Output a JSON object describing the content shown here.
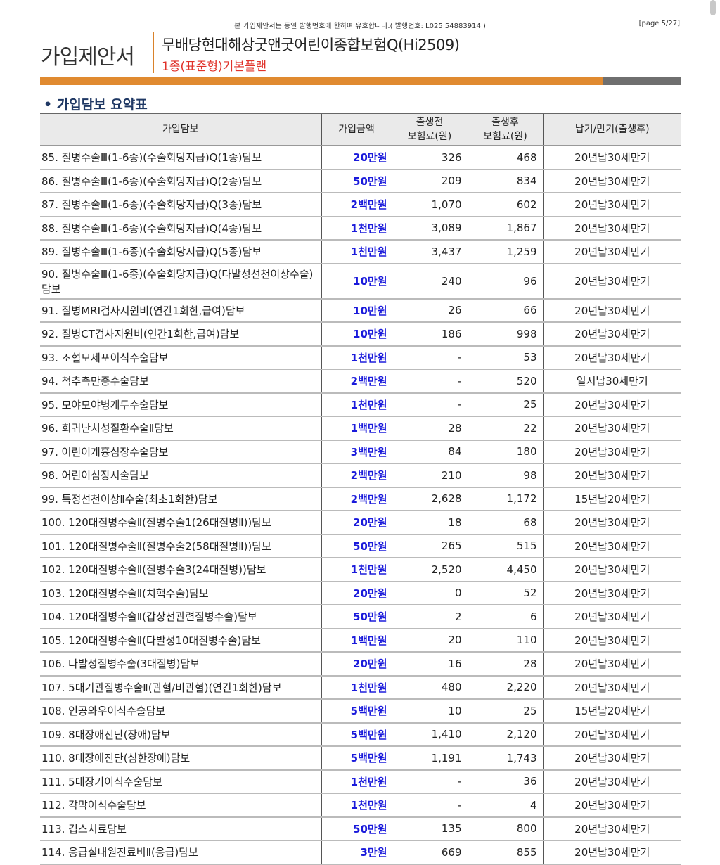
{
  "header": {
    "notice": "본 가입제안서는 동일 발행번호에 한하여 유효합니다.( 발행번호: L025 54883914 )",
    "page": "[page 5/27]",
    "doc_title": "가입제안서",
    "product": "무배당현대해상굿앤굿어린이종합보험Q(Hi2509)",
    "plan": "1종(표준형)기본플랜",
    "accent_color": "#e08a30",
    "plan_color": "#e0322a"
  },
  "section_title": "• 가입담보 요약표",
  "table": {
    "headers": [
      "가입담보",
      "가입금액",
      "출생전\n보험료(원)",
      "출생후\n보험료(원)",
      "납기/만기(출생후)"
    ],
    "amount_color": "#1a1adb",
    "rows": [
      [
        "85. 질병수술Ⅲ(1-6종)(수술회당지급)Q(1종)담보",
        "20만원",
        "326",
        "468",
        "20년납30세만기"
      ],
      [
        "86. 질병수술Ⅲ(1-6종)(수술회당지급)Q(2종)담보",
        "50만원",
        "209",
        "834",
        "20년납30세만기"
      ],
      [
        "87. 질병수술Ⅲ(1-6종)(수술회당지급)Q(3종)담보",
        "2백만원",
        "1,070",
        "602",
        "20년납30세만기"
      ],
      [
        "88. 질병수술Ⅲ(1-6종)(수술회당지급)Q(4종)담보",
        "1천만원",
        "3,089",
        "1,867",
        "20년납30세만기"
      ],
      [
        "89. 질병수술Ⅲ(1-6종)(수술회당지급)Q(5종)담보",
        "1천만원",
        "3,437",
        "1,259",
        "20년납30세만기"
      ],
      [
        "90. 질병수술Ⅲ(1-6종)(수술회당지급)Q(다발성선천이상수술)담보",
        "10만원",
        "240",
        "96",
        "20년납30세만기"
      ],
      [
        "91. 질병MRI검사지원비(연간1회한,급여)담보",
        "10만원",
        "26",
        "66",
        "20년납30세만기"
      ],
      [
        "92. 질병CT검사지원비(연간1회한,급여)담보",
        "10만원",
        "186",
        "998",
        "20년납30세만기"
      ],
      [
        "93. 조혈모세포이식수술담보",
        "1천만원",
        "-",
        "53",
        "20년납30세만기"
      ],
      [
        "94. 척추측만증수술담보",
        "2백만원",
        "-",
        "520",
        "일시납30세만기"
      ],
      [
        "95. 모야모야병개두수술담보",
        "1천만원",
        "-",
        "25",
        "20년납30세만기"
      ],
      [
        "96. 희귀난치성질환수술Ⅱ담보",
        "1백만원",
        "28",
        "22",
        "20년납30세만기"
      ],
      [
        "97. 어린이개흉심장수술담보",
        "3백만원",
        "84",
        "180",
        "20년납30세만기"
      ],
      [
        "98. 어린이심장시술담보",
        "2백만원",
        "210",
        "98",
        "20년납30세만기"
      ],
      [
        "99. 특정선천이상Ⅱ수술(최초1회한)담보",
        "2백만원",
        "2,628",
        "1,172",
        "15년납20세만기"
      ],
      [
        "100. 120대질병수술Ⅱ(질병수술1(26대질병Ⅱ))담보",
        "20만원",
        "18",
        "68",
        "20년납30세만기"
      ],
      [
        "101. 120대질병수술Ⅱ(질병수술2(58대질병Ⅱ))담보",
        "50만원",
        "265",
        "515",
        "20년납30세만기"
      ],
      [
        "102. 120대질병수술Ⅱ(질병수술3(24대질병))담보",
        "1천만원",
        "2,520",
        "4,450",
        "20년납30세만기"
      ],
      [
        "103. 120대질병수술Ⅱ(치핵수술)담보",
        "20만원",
        "0",
        "52",
        "20년납30세만기"
      ],
      [
        "104. 120대질병수술Ⅱ(갑상선관련질병수술)담보",
        "50만원",
        "2",
        "6",
        "20년납30세만기"
      ],
      [
        "105. 120대질병수술Ⅱ(다발성10대질병수술)담보",
        "1백만원",
        "20",
        "110",
        "20년납30세만기"
      ],
      [
        "106. 다발성질병수술(3대질병)담보",
        "20만원",
        "16",
        "28",
        "20년납30세만기"
      ],
      [
        "107. 5대기관질병수술Ⅱ(관혈/비관혈)(연간1회한)담보",
        "1천만원",
        "480",
        "2,220",
        "20년납30세만기"
      ],
      [
        "108. 인공와우이식수술담보",
        "5백만원",
        "10",
        "25",
        "15년납20세만기"
      ],
      [
        "109. 8대장애진단(장애)담보",
        "5백만원",
        "1,410",
        "2,120",
        "20년납30세만기"
      ],
      [
        "110. 8대장애진단(심한장애)담보",
        "5백만원",
        "1,191",
        "1,743",
        "20년납30세만기"
      ],
      [
        "111. 5대장기이식수술담보",
        "1천만원",
        "-",
        "36",
        "20년납30세만기"
      ],
      [
        "112. 각막이식수술담보",
        "1천만원",
        "-",
        "4",
        "20년납30세만기"
      ],
      [
        "113. 깁스치료담보",
        "50만원",
        "135",
        "800",
        "20년납30세만기"
      ],
      [
        "114. 응급실내원진료비Ⅱ(응급)담보",
        "3만원",
        "669",
        "855",
        "20년납30세만기"
      ]
    ]
  }
}
